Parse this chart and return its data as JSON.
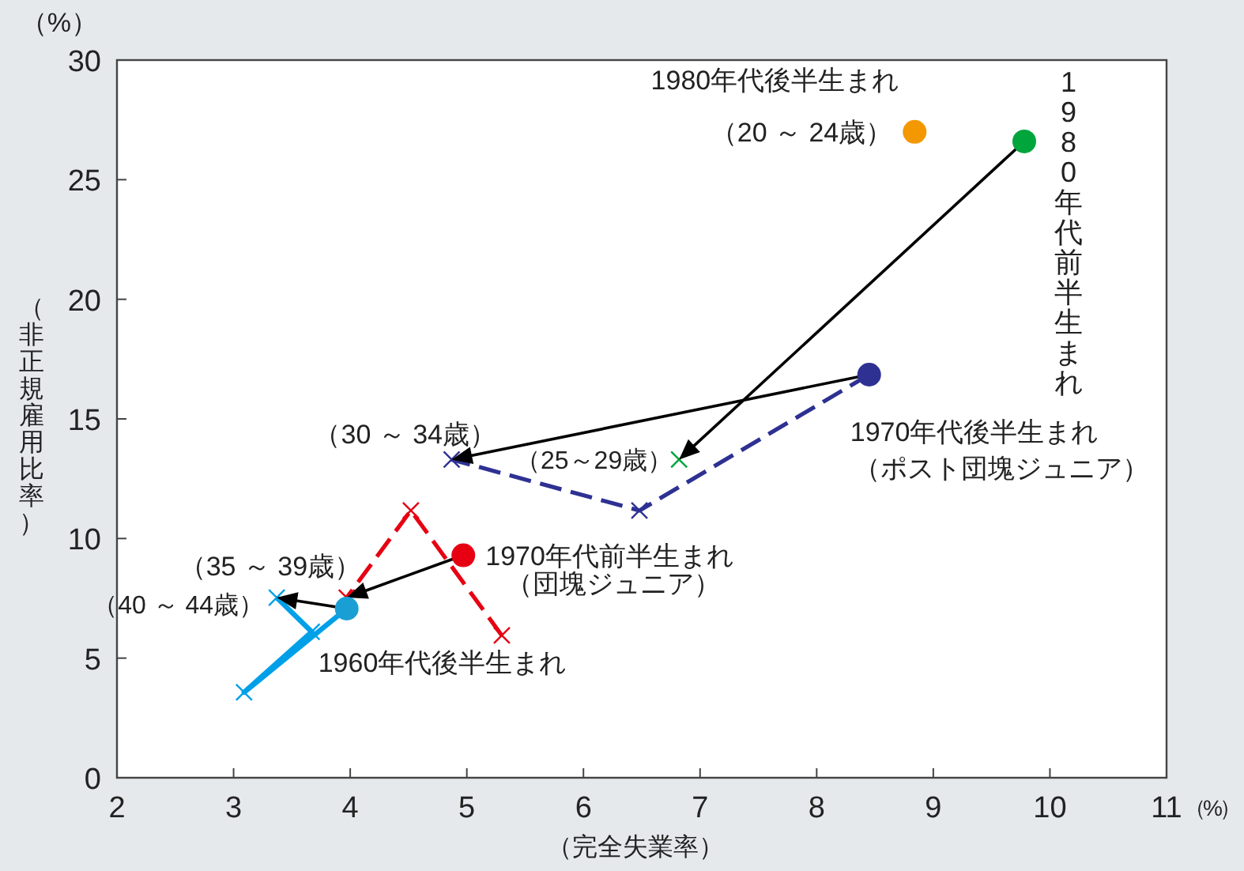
{
  "chart_data": {
    "type": "line",
    "xlabel": "（完全失業率）",
    "ylabel": "（非正規雇用比率）",
    "xlim": [
      2,
      11
    ],
    "xticks": [
      2,
      3,
      4,
      5,
      6,
      7,
      8,
      9,
      10,
      11
    ],
    "ylim": [
      0,
      30
    ],
    "yticks": [
      0,
      5,
      10,
      15,
      20,
      25,
      30
    ],
    "grid": false,
    "series": [
      {
        "color": "#00a0e9",
        "line_style": "solid",
        "marker": "cross",
        "x": [
          3.97,
          3.09,
          3.67,
          3.37
        ],
        "values": [
          7.07,
          3.57,
          6.1,
          7.53
        ]
      },
      {
        "color": "#e60012",
        "line_style": "dashed",
        "marker": "cross",
        "x": [
          5.3,
          4.52,
          3.97
        ],
        "values": [
          5.95,
          11.17,
          7.53
        ]
      },
      {
        "color": "#2e3192",
        "line_style": "dashed",
        "marker": "cross",
        "x": [
          8.45,
          6.48,
          4.87
        ],
        "values": [
          16.85,
          11.17,
          13.3
        ]
      },
      {
        "type": "scatter",
        "color": "#00a53c",
        "marker": "cross",
        "x": [
          6.82
        ],
        "values": [
          13.3
        ]
      },
      {
        "type": "scatter",
        "color": "#f39800",
        "marker": "circle",
        "x": [
          8.84
        ],
        "values": [
          27
        ]
      },
      {
        "type": "scatter",
        "color": "#00a53c",
        "marker": "circle",
        "x": [
          9.78
        ],
        "values": [
          26.6
        ]
      },
      {
        "type": "scatter",
        "color": "#2e3192",
        "marker": "circle",
        "x": [
          8.45
        ],
        "values": [
          16.85
        ]
      },
      {
        "type": "scatter",
        "color": "#e60012",
        "marker": "circle",
        "x": [
          4.97
        ],
        "values": [
          9.3
        ]
      },
      {
        "type": "scatter",
        "color": "#1a9fd5",
        "marker": "circle",
        "x": [
          3.97
        ],
        "values": [
          7.07
        ]
      }
    ],
    "annotations": [
      {
        "text": "1980年代後半生まれ",
        "x": 8.84,
        "y": 27
      },
      {
        "text": "（20 ～ 24歳）",
        "x": 8.84,
        "y": 27
      },
      "1980年代前半生まれ",
      {
        "text": "1970年代後半生まれ",
        "x": 8.45,
        "y": 16.85
      },
      "（ポスト団塊ジュニア）",
      {
        "text": "（25～29歳）",
        "x": 6.82,
        "y": 13.3
      },
      {
        "text": "（30 ～ 34歳）",
        "x": 4.87,
        "y": 13.3
      },
      {
        "text": "1970年代前半生まれ",
        "x": 4.97,
        "y": 9.3
      },
      "（団塊ジュニア）",
      {
        "text": "（35 ～ 39歳）",
        "x": 3.97,
        "y": 7.53
      },
      {
        "text": "（40 ～ 44歳）",
        "x": 3.37,
        "y": 7.53
      },
      {
        "text": "1960年代後半生まれ",
        "x": 3.97,
        "y": 7.07
      },
      "（%）",
      "（%）"
    ]
  }
}
